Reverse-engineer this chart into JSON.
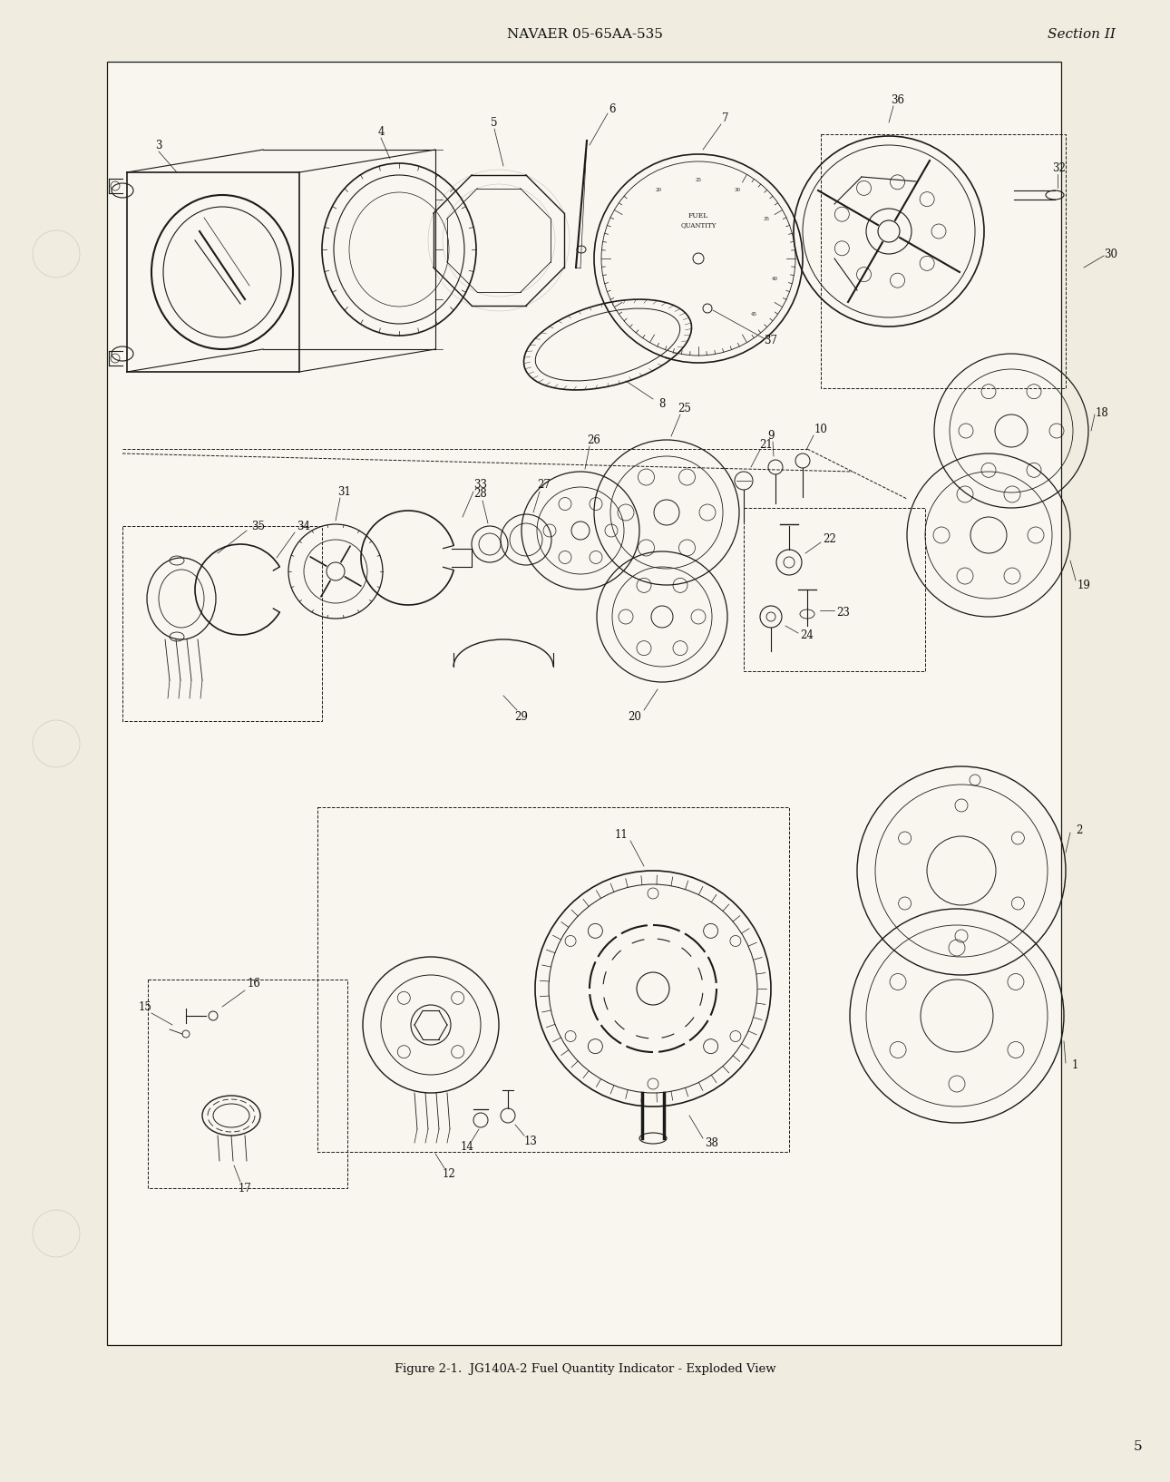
{
  "background_color": "#f0ede0",
  "drawing_bg": "#f8f6ee",
  "header_text": "NAVAER 05-65AA-535",
  "header_right": "Section II",
  "footer_caption": "Figure 2-1.  JG140A-2 Fuel Quantity Indicator - Exploded View",
  "page_number": "5",
  "header_fontsize": 11,
  "caption_fontsize": 9.5,
  "page_num_fontsize": 11,
  "drawing_color": "#1a1a1a",
  "text_color": "#111111",
  "label_fontsize": 8.5
}
